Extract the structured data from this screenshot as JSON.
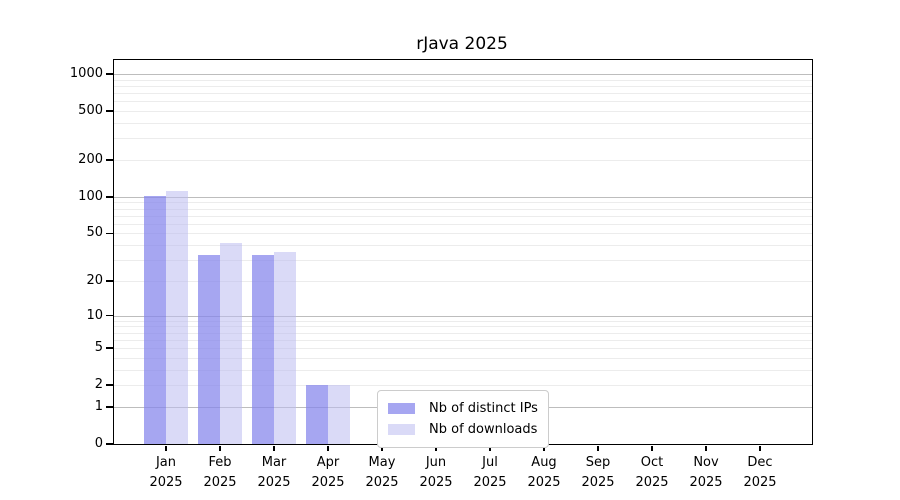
{
  "chart_data": {
    "type": "bar",
    "title": "rJava 2025",
    "categories": [
      "Jan",
      "Feb",
      "Mar",
      "Apr",
      "May",
      "Jun",
      "Jul",
      "Aug",
      "Sep",
      "Oct",
      "Nov",
      "Dec"
    ],
    "category_year": "2025",
    "series": [
      {
        "name": "Nb of distinct IPs",
        "color": "rgba(131,131,235,0.72)",
        "values": [
          102,
          33,
          33,
          2,
          0,
          0,
          0,
          0,
          0,
          0,
          0,
          0
        ]
      },
      {
        "name": "Nb of downloads",
        "color": "rgba(188,188,240,0.55)",
        "values": [
          112,
          42,
          35,
          2,
          0,
          0,
          0,
          0,
          0,
          0,
          0,
          0
        ]
      }
    ],
    "y_axis": {
      "scale": "log10(1+x)",
      "ticks": [
        0,
        1,
        2,
        5,
        10,
        20,
        50,
        100,
        200,
        500,
        1000
      ],
      "range_top_value": 1300
    },
    "x_axis": {
      "label": "",
      "tick_lines": 2
    },
    "grid": {
      "minor": [
        2,
        3,
        4,
        5,
        6,
        7,
        8,
        9,
        20,
        30,
        40,
        50,
        60,
        70,
        80,
        90,
        200,
        300,
        400,
        500,
        600,
        700,
        800,
        900
      ],
      "major": [
        1,
        10,
        100,
        1000
      ],
      "minor_color": "#ececec",
      "major_color": "#bdbdbd"
    },
    "legend_position": "bottom-center-inside",
    "spine_color": "#000000",
    "background_color": "#ffffff"
  }
}
